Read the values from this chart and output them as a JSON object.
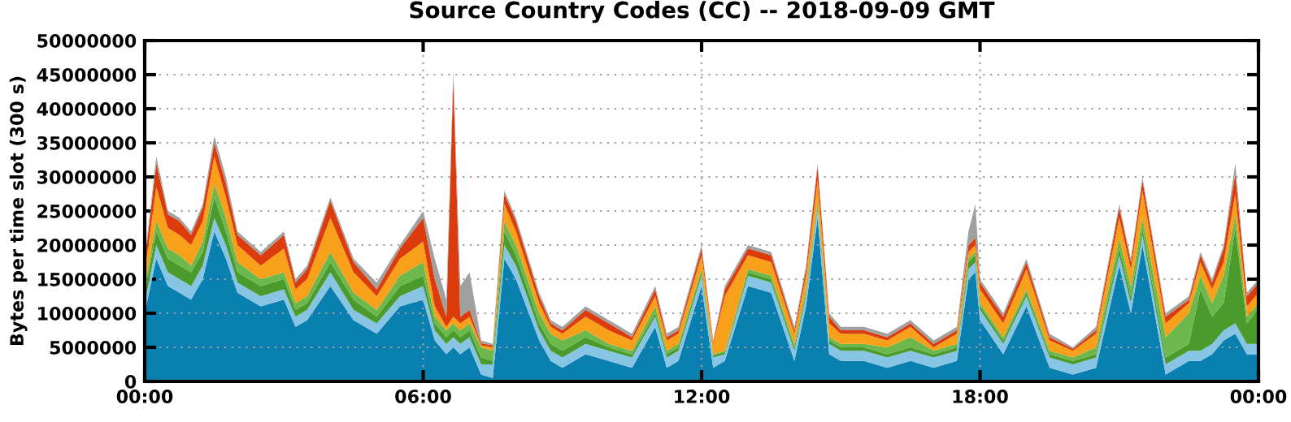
{
  "chart_data": {
    "type": "area",
    "stacked": true,
    "title": "Source Country Codes (CC) -- 2018-09-09 GMT",
    "ylabel": "Bytes per time slot (300 s)",
    "x": [
      0,
      0.25,
      0.5,
      0.75,
      1,
      1.25,
      1.5,
      1.75,
      2,
      2.5,
      3,
      3.25,
      3.5,
      4,
      4.5,
      5,
      5.5,
      6,
      6.25,
      6.5,
      6.65,
      6.8,
      7,
      7.25,
      7.5,
      7.75,
      8,
      8.5,
      8.75,
      9,
      9.5,
      10,
      10.5,
      11,
      11.25,
      11.5,
      12,
      12.25,
      12.5,
      13,
      13.5,
      14,
      14.25,
      14.5,
      14.75,
      15,
      15.5,
      16,
      16.5,
      17,
      17.5,
      17.75,
      17.9,
      18,
      18.5,
      19,
      19.5,
      20,
      20.5,
      21,
      21.25,
      21.5,
      22,
      22.5,
      22.75,
      23,
      23.25,
      23.5,
      23.75,
      24
    ],
    "series": [
      {
        "color": "#0a80b0",
        "values": [
          10000000.0,
          18000000.0,
          14000000.0,
          13000000.0,
          12000000.0,
          15000000.0,
          22000000.0,
          18000000.0,
          13000000.0,
          11000000.0,
          12000000.0,
          8000000.0,
          9000000.0,
          14000000.0,
          9000000.0,
          7000000.0,
          11000000.0,
          12000000.0,
          6000000.0,
          4000000.0,
          5000000.0,
          4000000.0,
          5000000.0,
          1000000.0,
          500000.0,
          18000000.0,
          15000000.0,
          6000000.0,
          3000000.0,
          2000000.0,
          4000000.0,
          3000000.0,
          2000000.0,
          8000000.0,
          2000000.0,
          3000000.0,
          14000000.0,
          2000000.0,
          3000000.0,
          14000000.0,
          13000000.0,
          3000000.0,
          11000000.0,
          24000000.0,
          4000000.0,
          3000000.0,
          3000000.0,
          2000000.0,
          3000000.0,
          2000000.0,
          3000000.0,
          15000000.0,
          16000000.0,
          9000000.0,
          4000000.0,
          11000000.0,
          2000000.0,
          1000000.0,
          2000000.0,
          17000000.0,
          10000000.0,
          20000000.0,
          1000000.0,
          3000000.0,
          3000000.0,
          4000000.0,
          6000000.0,
          7000000.0,
          4000000.0,
          4000000.0
        ]
      },
      {
        "color": "#88c4e4",
        "values": [
          1500000.0,
          2000000.0,
          2000000.0,
          2000000.0,
          2000000.0,
          2000000.0,
          2000000.0,
          2000000.0,
          1500000.0,
          1500000.0,
          1500000.0,
          1500000.0,
          1500000.0,
          2000000.0,
          1500000.0,
          1500000.0,
          1500000.0,
          2000000.0,
          1500000.0,
          1500000.0,
          1500000.0,
          1500000.0,
          1500000.0,
          1500000.0,
          2000000.0,
          2000000.0,
          2000000.0,
          1500000.0,
          1500000.0,
          1500000.0,
          1500000.0,
          1500000.0,
          1500000.0,
          1500000.0,
          1500000.0,
          1500000.0,
          1500000.0,
          1500000.0,
          1000000.0,
          1500000.0,
          1500000.0,
          1500000.0,
          1500000.0,
          1500000.0,
          1500000.0,
          1500000.0,
          1500000.0,
          1500000.0,
          1500000.0,
          1500000.0,
          1500000.0,
          1500000.0,
          1500000.0,
          1500000.0,
          1500000.0,
          1500000.0,
          1500000.0,
          1500000.0,
          1500000.0,
          1500000.0,
          1500000.0,
          1500000.0,
          1500000.0,
          1500000.0,
          1500000.0,
          1500000.0,
          1500000.0,
          1500000.0,
          1500000.0,
          1500000.0
        ]
      },
      {
        "color": "#4a9a2c",
        "values": [
          1500000.0,
          2000000.0,
          2000000.0,
          2000000.0,
          2000000.0,
          2000000.0,
          3000000.0,
          2000000.0,
          1500000.0,
          1500000.0,
          1500000.0,
          1000000.0,
          1000000.0,
          1500000.0,
          1500000.0,
          1000000.0,
          1500000.0,
          1500000.0,
          1000000.0,
          1000000.0,
          1000000.0,
          1000000.0,
          1000000.0,
          1000000.0,
          500000.0,
          2000000.0,
          1500000.0,
          1000000.0,
          1000000.0,
          1000000.0,
          1000000.0,
          500000.0,
          500000.0,
          500000.0,
          500000.0,
          500000.0,
          500000.0,
          300000.0,
          300000.0,
          500000.0,
          500000.0,
          500000.0,
          500000.0,
          500000.0,
          500000.0,
          500000.0,
          500000.0,
          500000.0,
          500000.0,
          500000.0,
          500000.0,
          1000000.0,
          1000000.0,
          500000.0,
          500000.0,
          500000.0,
          500000.0,
          500000.0,
          500000.0,
          1000000.0,
          1000000.0,
          1000000.0,
          1000000.0,
          1000000.0,
          9000000.0,
          4000000.0,
          4000000.0,
          14000000.0,
          3000000.0,
          5000000.0
        ]
      },
      {
        "color": "#6cb84c",
        "values": [
          1000000.0,
          1500000.0,
          1500000.0,
          1500000.0,
          1000000.0,
          1500000.0,
          2000000.0,
          2000000.0,
          1500000.0,
          1000000.0,
          1000000.0,
          1000000.0,
          1000000.0,
          1500000.0,
          1000000.0,
          1000000.0,
          1500000.0,
          2000000.0,
          1000000.0,
          1000000.0,
          1000000.0,
          1000000.0,
          1000000.0,
          1500000.0,
          1500000.0,
          1500000.0,
          1500000.0,
          1500000.0,
          1500000.0,
          1500000.0,
          1000000.0,
          500000.0,
          500000.0,
          1000000.0,
          500000.0,
          500000.0,
          500000.0,
          200000.0,
          200000.0,
          500000.0,
          500000.0,
          500000.0,
          500000.0,
          500000.0,
          500000.0,
          500000.0,
          500000.0,
          1000000.0,
          1500000.0,
          500000.0,
          500000.0,
          500000.0,
          500000.0,
          500000.0,
          500000.0,
          500000.0,
          500000.0,
          500000.0,
          1000000.0,
          1500000.0,
          1500000.0,
          1500000.0,
          3000000.0,
          4500000.0,
          2000000.0,
          2000000.0,
          4000000.0,
          2000000.0,
          1000000.0,
          1000000.0
        ]
      },
      {
        "color": "#f8a01a",
        "values": [
          2000000.0,
          5000000.0,
          3000000.0,
          3000000.0,
          3000000.0,
          3000000.0,
          4000000.0,
          3000000.0,
          2500000.0,
          2000000.0,
          3500000.0,
          2000000.0,
          2500000.0,
          5000000.0,
          3000000.0,
          2000000.0,
          2500000.0,
          3000000.0,
          1500000.0,
          500000.0,
          1000000.0,
          1000000.0,
          1000000.0,
          300000.0,
          500000.0,
          2500000.0,
          2000000.0,
          1500000.0,
          1000000.0,
          1000000.0,
          2000000.0,
          2000000.0,
          1500000.0,
          1500000.0,
          1500000.0,
          1500000.0,
          2000000.0,
          1500000.0,
          8000000.0,
          2000000.0,
          2000000.0,
          1500000.0,
          2000000.0,
          3000000.0,
          2000000.0,
          1500000.0,
          1500000.0,
          1000000.0,
          1500000.0,
          500000.0,
          1500000.0,
          1000000.0,
          1000000.0,
          2000000.0,
          2000000.0,
          3000000.0,
          1500000.0,
          1000000.0,
          2000000.0,
          3000000.0,
          2500000.0,
          4000000.0,
          2000000.0,
          1500000.0,
          2000000.0,
          2000000.0,
          2000000.0,
          3000000.0,
          1500000.0,
          1500000.0
        ]
      },
      {
        "color": "#dc3c0c",
        "values": [
          1500000.0,
          3500000.0,
          2000000.0,
          2000000.0,
          1500000.0,
          2000000.0,
          2000000.0,
          2000000.0,
          1500000.0,
          1500000.0,
          2000000.0,
          1000000.0,
          1500000.0,
          2500000.0,
          1500000.0,
          1000000.0,
          1500000.0,
          3500000.0,
          4000000.0,
          1500000.0,
          35000000.0,
          1000000.0,
          1000000.0,
          300000.0,
          300000.0,
          1500000.0,
          1500000.0,
          1000000.0,
          500000.0,
          500000.0,
          1000000.0,
          1000000.0,
          500000.0,
          1000000.0,
          500000.0,
          500000.0,
          1000000.0,
          300000.0,
          1000000.0,
          1000000.0,
          1000000.0,
          500000.0,
          1000000.0,
          2000000.0,
          1000000.0,
          500000.0,
          500000.0,
          500000.0,
          500000.0,
          500000.0,
          500000.0,
          1000000.0,
          1000000.0,
          1000000.0,
          1000000.0,
          1000000.0,
          500000.0,
          300000.0,
          500000.0,
          1500000.0,
          1000000.0,
          1500000.0,
          1000000.0,
          500000.0,
          1000000.0,
          1000000.0,
          2000000.0,
          3000000.0,
          1500000.0,
          1500000.0
        ]
      },
      {
        "color": "#a0a0a0",
        "values": [
          500000.0,
          1000000.0,
          500000.0,
          500000.0,
          500000.0,
          500000.0,
          1000000.0,
          1000000.0,
          500000.0,
          500000.0,
          500000.0,
          500000.0,
          500000.0,
          500000.0,
          500000.0,
          1000000.0,
          500000.0,
          1000000.0,
          3000000.0,
          2500000.0,
          1000000.0,
          4500000.0,
          5500000.0,
          400000.0,
          200000.0,
          500000.0,
          500000.0,
          500000.0,
          500000.0,
          500000.0,
          500000.0,
          500000.0,
          500000.0,
          500000.0,
          500000.0,
          500000.0,
          500000.0,
          200000.0,
          500000.0,
          500000.0,
          500000.0,
          500000.0,
          500000.0,
          500000.0,
          500000.0,
          500000.0,
          500000.0,
          500000.0,
          500000.0,
          500000.0,
          500000.0,
          2000000.0,
          5000000.0,
          500000.0,
          500000.0,
          500000.0,
          500000.0,
          200000.0,
          500000.0,
          500000.0,
          500000.0,
          500000.0,
          500000.0,
          500000.0,
          500000.0,
          500000.0,
          500000.0,
          1500000.0,
          500000.0,
          500000.0
        ]
      }
    ],
    "xlim": [
      0,
      24
    ],
    "xticks": [
      {
        "value": 0,
        "label": "00:00"
      },
      {
        "value": 6,
        "label": "06:00"
      },
      {
        "value": 12,
        "label": "12:00"
      },
      {
        "value": 18,
        "label": "18:00"
      },
      {
        "value": 24,
        "label": "00:00"
      }
    ],
    "ylim": [
      0,
      50000000
    ],
    "yticks": [
      0,
      5000000,
      10000000,
      15000000,
      20000000,
      25000000,
      30000000,
      35000000,
      40000000,
      45000000,
      50000000
    ],
    "grid": true,
    "legend": false
  }
}
